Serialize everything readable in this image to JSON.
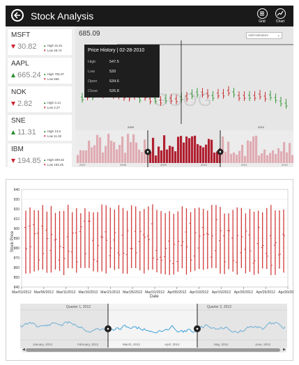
{
  "app": {
    "title": "Stock Analysis"
  },
  "toolbar": {
    "grid_label": "Grid",
    "chart_label": "Chart"
  },
  "tickers": [
    {
      "symbol": "MSFT",
      "price": "30.82",
      "direction": "down",
      "high": "High 31.61",
      "low": "Low 29.74"
    },
    {
      "symbol": "AAPL",
      "price": "665.24",
      "direction": "up",
      "high": "High 705.07",
      "low": "Low 656"
    },
    {
      "symbol": "NOK",
      "price": "2.82",
      "direction": "down",
      "high": "High 3.14",
      "low": "Low 2.27"
    },
    {
      "symbol": "SNE",
      "price": "11.31",
      "direction": "up",
      "high": "High 13.6",
      "low": "Low 11.02"
    },
    {
      "symbol": "IBM",
      "price": "194.85",
      "direction": "down",
      "high": "High 209.32",
      "low": "Low 193.25"
    }
  ],
  "main_chart": {
    "current_price": "685.09",
    "indicator_placeholder": "Add Indicators",
    "watermark": "GOOG",
    "year_labels": [
      "2009",
      "2010"
    ],
    "nav_year_labels": [
      "2007",
      "2008",
      "2009",
      "2010",
      "2011",
      "2012"
    ],
    "tooltip": {
      "title": "Price History | 02-28-2010",
      "rows": [
        {
          "label": "High",
          "value": "547.5"
        },
        {
          "label": "Low",
          "value": "520"
        },
        {
          "label": "Open",
          "value": "534.6"
        },
        {
          "label": "Close",
          "value": "526.8"
        }
      ]
    }
  },
  "bottom_chart": {
    "ylabel": "Stock Price",
    "xlabel": "Date",
    "y_ticks": [
      940,
      930,
      920,
      910,
      900,
      890,
      880,
      870,
      860,
      850,
      840
    ],
    "x_ticks": [
      "Mar/01/2012",
      "Mar/06/2012",
      "Mar/11/2012",
      "Mar/16/2012",
      "Mar/21/2012",
      "Mar/26/2012",
      "Mar/31/2012",
      "Apr/05/2012",
      "Apr/10/2012",
      "Apr/15/2012",
      "Apr/20/2012",
      "Apr/25/2012",
      "Apr/30/2012"
    ],
    "nav_quarters": [
      "Quarter 1, 2012",
      "Quarter 2, 2012"
    ],
    "nav_months": [
      "January, 2012",
      "February, 2012",
      "March, 2012",
      "April, 2012",
      "May, 2012",
      "June, 2012"
    ],
    "colors": {
      "hloc": "#d23a3a",
      "nav_line": "#3aa0d8",
      "grid": "#e2e2e2"
    }
  },
  "chart_data": [
    {
      "type": "bar",
      "title": "",
      "xlabel": "",
      "ylabel": "",
      "note": "GOOG price chart; latest price 685.09; values not labeled",
      "series": [
        {
          "name": "GOOG",
          "values": []
        }
      ]
    },
    {
      "type": "bar",
      "title": "",
      "xlabel": "Date",
      "ylabel": "Stock Price",
      "ylim": [
        840,
        940
      ],
      "categories": [
        "Mar/01/2012",
        "Mar/06/2012",
        "Mar/11/2012",
        "Mar/16/2012",
        "Mar/21/2012",
        "Mar/26/2012",
        "Mar/31/2012",
        "Apr/05/2012",
        "Apr/10/2012",
        "Apr/15/2012",
        "Apr/20/2012",
        "Apr/25/2012",
        "Apr/30/2012"
      ],
      "grid": true,
      "legend": "none"
    }
  ]
}
